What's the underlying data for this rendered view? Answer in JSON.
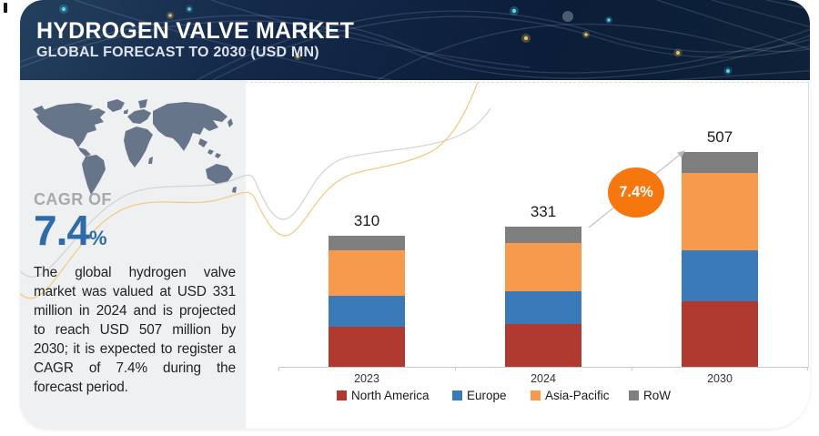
{
  "header": {
    "title": "HYDROGEN VALVE MARKET",
    "subtitle": "GLOBAL FORECAST TO 2030 (USD MN)"
  },
  "sidebar": {
    "cagr_label": "CAGR OF",
    "cagr_value": "7.4",
    "cagr_unit": "%",
    "description": "The global hydrogen valve market was valued at USD 331 million in 2024 and is projected to reach USD 507 million by 2030; it is expected to register a CAGR of 7.4% during the forecast period."
  },
  "chart": {
    "growth_badge": "7.4%"
  },
  "chart_data": {
    "type": "bar",
    "stacked": true,
    "title": "HYDROGEN VALVE MARKET",
    "subtitle": "GLOBAL FORECAST TO 2030 (USD MN)",
    "unit": "USD MN",
    "categories": [
      "2023",
      "2024",
      "2030"
    ],
    "series": [
      {
        "name": "North America",
        "color": "#b13a30",
        "values": [
          95,
          100,
          155
        ]
      },
      {
        "name": "Europe",
        "color": "#3a7ab8",
        "values": [
          73,
          78,
          119
        ]
      },
      {
        "name": "Asia-Pacific",
        "color": "#f89a4e",
        "values": [
          107,
          115,
          183
        ]
      },
      {
        "name": "RoW",
        "color": "#7f7f7f",
        "values": [
          35,
          38,
          50
        ]
      }
    ],
    "totals": [
      310,
      331,
      507
    ],
    "cagr_annotation": "7.4%",
    "legend_position": "bottom",
    "gridlines": false
  },
  "colors": {
    "cagr_blue": "#2d6ca8",
    "badge_orange": "#f5770e",
    "header_navy": "#122844",
    "sidebar_gray": "#eef0f2",
    "map_gray": "#67758a",
    "wave_gray": "#d0d0d0",
    "wave_yellow": "#f3c87d"
  }
}
